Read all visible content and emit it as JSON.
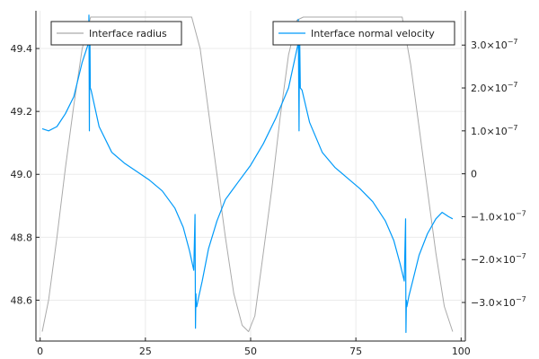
{
  "chart_data": {
    "type": "line",
    "title": "",
    "xlabel": "",
    "ylabel_left": "",
    "ylabel_right": "",
    "grid": true,
    "xlim": [
      -1,
      101
    ],
    "ylim_left": [
      48.47,
      49.52
    ],
    "ylim_right": [
      -3.9e-07,
      3.8e-07
    ],
    "x_ticks": [
      {
        "value": 0,
        "label": "0"
      },
      {
        "value": 25,
        "label": "25"
      },
      {
        "value": 50,
        "label": "50"
      },
      {
        "value": 75,
        "label": "75"
      },
      {
        "value": 100,
        "label": "100"
      }
    ],
    "y_ticks_left": [
      {
        "value": 48.6,
        "label": "48.6"
      },
      {
        "value": 48.8,
        "label": "48.8"
      },
      {
        "value": 49.0,
        "label": "49.0"
      },
      {
        "value": 49.2,
        "label": "49.2"
      },
      {
        "value": 49.4,
        "label": "49.4"
      }
    ],
    "y_ticks_right": [
      {
        "value": -3e-07,
        "label": "−3.0×10",
        "exp": "−7"
      },
      {
        "value": -2e-07,
        "label": "−2.0×10",
        "exp": "−7"
      },
      {
        "value": -1e-07,
        "label": "−1.0×10",
        "exp": "−7"
      },
      {
        "value": 0,
        "label": "0",
        "exp": ""
      },
      {
        "value": 1e-07,
        "label": "1.0×10",
        "exp": "−7"
      },
      {
        "value": 2e-07,
        "label": "2.0×10",
        "exp": "−7"
      },
      {
        "value": 3e-07,
        "label": "3.0×10",
        "exp": "−7"
      }
    ],
    "series": [
      {
        "name": "Interface radius",
        "axis": "left",
        "color": "#aaaaaa",
        "x": [
          0.5,
          2,
          4,
          6,
          8,
          10,
          12,
          13,
          30,
          36,
          38,
          40,
          42,
          44,
          46,
          48,
          49.5,
          51,
          53,
          55,
          57,
          59,
          61,
          62.5,
          80,
          86,
          88,
          90,
          92,
          94,
          96,
          98
        ],
        "y": [
          48.5,
          48.6,
          48.8,
          49.02,
          49.22,
          49.4,
          49.5,
          49.5,
          49.5,
          49.5,
          49.4,
          49.2,
          49.0,
          48.8,
          48.62,
          48.52,
          48.5,
          48.55,
          48.75,
          48.95,
          49.18,
          49.38,
          49.49,
          49.5,
          49.5,
          49.5,
          49.35,
          49.15,
          48.95,
          48.75,
          48.58,
          48.5
        ]
      },
      {
        "name": "Interface normal velocity",
        "axis": "right",
        "color": "#009af9",
        "x": [
          0.5,
          2,
          4,
          6,
          8,
          10,
          11.5,
          11.6,
          11.7,
          11.8,
          11.9,
          12.1,
          14,
          17,
          20,
          23,
          26,
          29,
          32,
          34,
          35.5,
          36.5,
          36.8,
          36.9,
          37.0,
          37.1,
          37.2,
          37.6,
          38.5,
          40,
          42,
          44,
          47,
          50,
          53,
          56,
          59,
          61.2,
          61.3,
          61.5,
          61.6,
          61.8,
          62.2,
          64,
          67,
          70,
          73,
          76,
          79,
          82,
          84,
          85.5,
          86.5,
          86.8,
          86.9,
          87.0,
          87.1,
          87.6,
          88.5,
          90,
          92,
          94,
          95.5,
          97,
          98
        ],
        "y": [
          1.05e-07,
          1e-07,
          1.1e-07,
          1.4e-07,
          1.8e-07,
          2.6e-07,
          3.05e-07,
          3.7e-07,
          1e-07,
          3.5e-07,
          2e-07,
          1.95e-07,
          1.1e-07,
          5e-08,
          2.5e-08,
          5e-09,
          -1.5e-08,
          -4e-08,
          -8e-08,
          -1.25e-07,
          -1.8e-07,
          -2.25e-07,
          -9.5e-08,
          -3.6e-07,
          -2.8e-07,
          -3.05e-07,
          -3.1e-07,
          -2.9e-07,
          -2.5e-07,
          -1.75e-07,
          -1.1e-07,
          -6e-08,
          -2e-08,
          2e-08,
          7e-08,
          1.3e-07,
          2e-07,
          3e-07,
          3.6e-07,
          1e-07,
          3.5e-07,
          2e-07,
          1.95e-07,
          1.2e-07,
          5e-08,
          1.5e-08,
          -1e-08,
          -3.5e-08,
          -6.5e-08,
          -1.1e-07,
          -1.55e-07,
          -2.1e-07,
          -2.5e-07,
          -1.05e-07,
          -3.7e-07,
          -2.95e-07,
          -3.1e-07,
          -2.85e-07,
          -2.5e-07,
          -1.9e-07,
          -1.4e-07,
          -1.05e-07,
          -9e-08,
          -1e-07,
          -1.05e-07
        ]
      }
    ],
    "legends": [
      {
        "text": "Interface radius",
        "placement": "top-left",
        "color": "#aaaaaa"
      },
      {
        "text": "Interface normal velocity",
        "placement": "top-right",
        "color": "#009af9"
      }
    ]
  }
}
